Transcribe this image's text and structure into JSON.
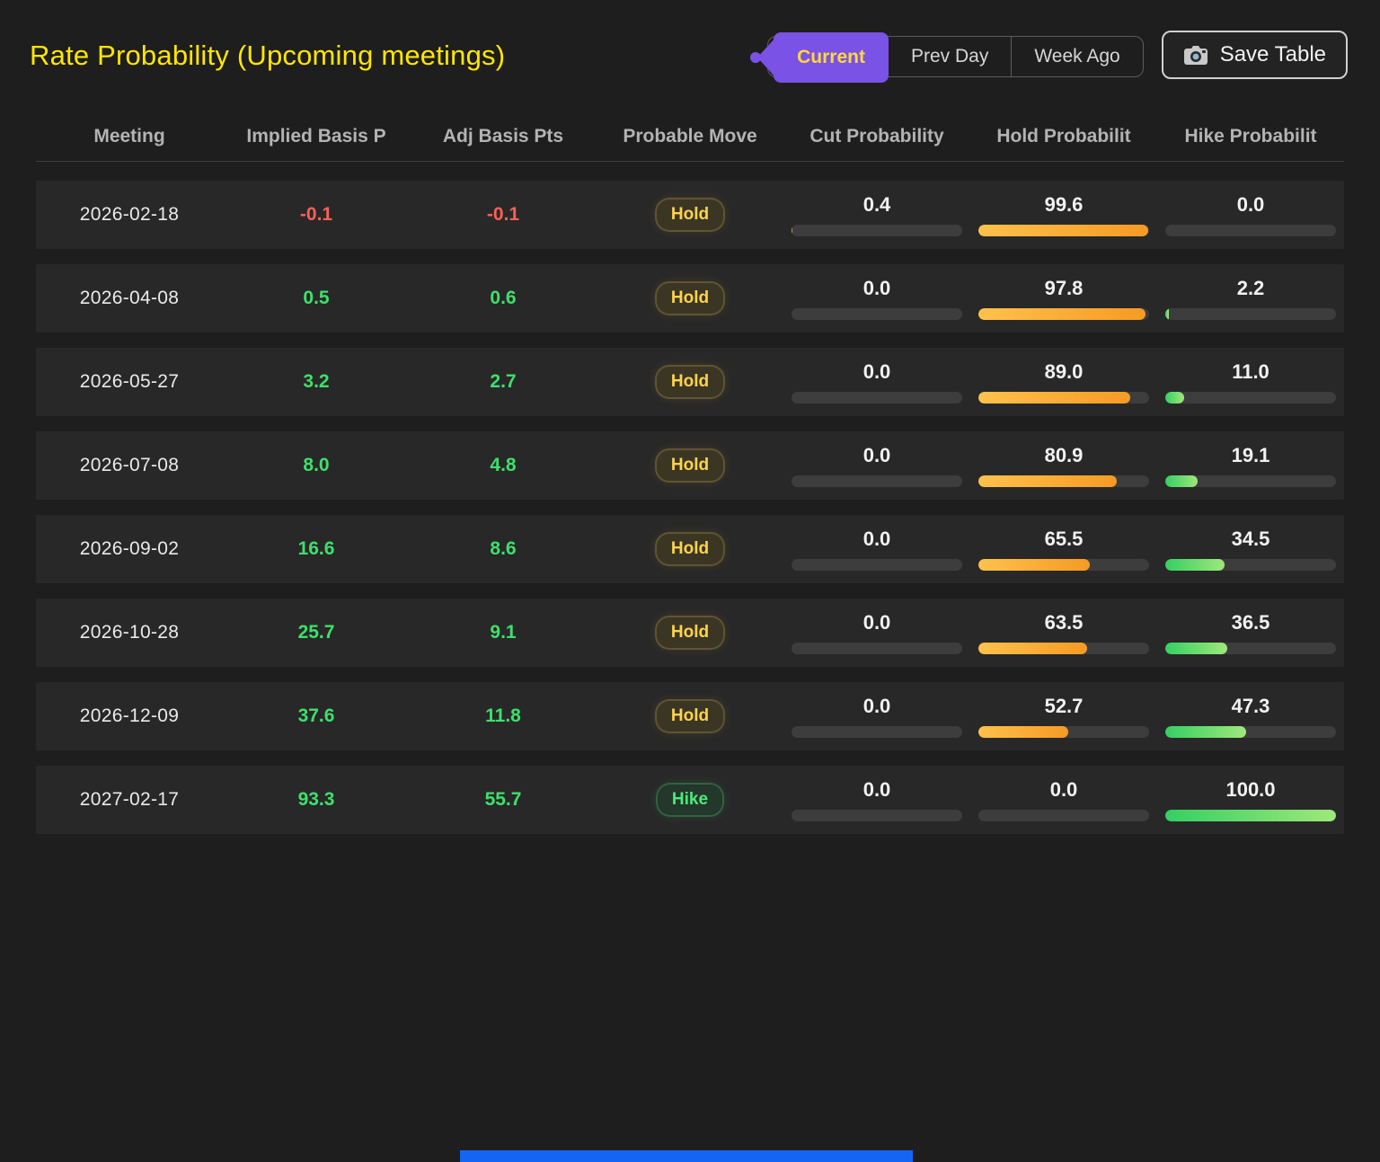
{
  "page": {
    "title": "Rate Probability (Upcoming meetings)"
  },
  "toolbar": {
    "tabs": [
      {
        "label": "Current",
        "active": true
      },
      {
        "label": "Prev Day",
        "active": false
      },
      {
        "label": "Week Ago",
        "active": false
      }
    ],
    "save_label": "Save Table",
    "save_icon": "camera-icon"
  },
  "table": {
    "columns": [
      "Meeting",
      "Implied Basis P",
      "Adj Basis Pts",
      "Probable Move",
      "Cut Probability",
      "Hold Probabilit",
      "Hike Probabilit"
    ],
    "rows": [
      {
        "meeting": "2026-02-18",
        "implied": "-0.1",
        "adj": "-0.1",
        "move": "Hold",
        "cut": "0.4",
        "hold": "99.6",
        "hike": "0.0"
      },
      {
        "meeting": "2026-04-08",
        "implied": "0.5",
        "adj": "0.6",
        "move": "Hold",
        "cut": "0.0",
        "hold": "97.8",
        "hike": "2.2"
      },
      {
        "meeting": "2026-05-27",
        "implied": "3.2",
        "adj": "2.7",
        "move": "Hold",
        "cut": "0.0",
        "hold": "89.0",
        "hike": "11.0"
      },
      {
        "meeting": "2026-07-08",
        "implied": "8.0",
        "adj": "4.8",
        "move": "Hold",
        "cut": "0.0",
        "hold": "80.9",
        "hike": "19.1"
      },
      {
        "meeting": "2026-09-02",
        "implied": "16.6",
        "adj": "8.6",
        "move": "Hold",
        "cut": "0.0",
        "hold": "65.5",
        "hike": "34.5"
      },
      {
        "meeting": "2026-10-28",
        "implied": "25.7",
        "adj": "9.1",
        "move": "Hold",
        "cut": "0.0",
        "hold": "63.5",
        "hike": "36.5"
      },
      {
        "meeting": "2026-12-09",
        "implied": "37.6",
        "adj": "11.8",
        "move": "Hold",
        "cut": "0.0",
        "hold": "52.7",
        "hike": "47.3"
      },
      {
        "meeting": "2027-02-17",
        "implied": "93.3",
        "adj": "55.7",
        "move": "Hike",
        "cut": "0.0",
        "hold": "0.0",
        "hike": "100.0"
      }
    ]
  },
  "colors": {
    "title_yellow": "#ffe600",
    "accent_purple": "#7a52e6",
    "positive_green": "#3ee06b",
    "negative_red": "#ff5f56",
    "hold_bar": "#f59b23",
    "hike_bar": "#35cf63",
    "bar_track": "#3d3d3d",
    "row_background": "#282828"
  }
}
